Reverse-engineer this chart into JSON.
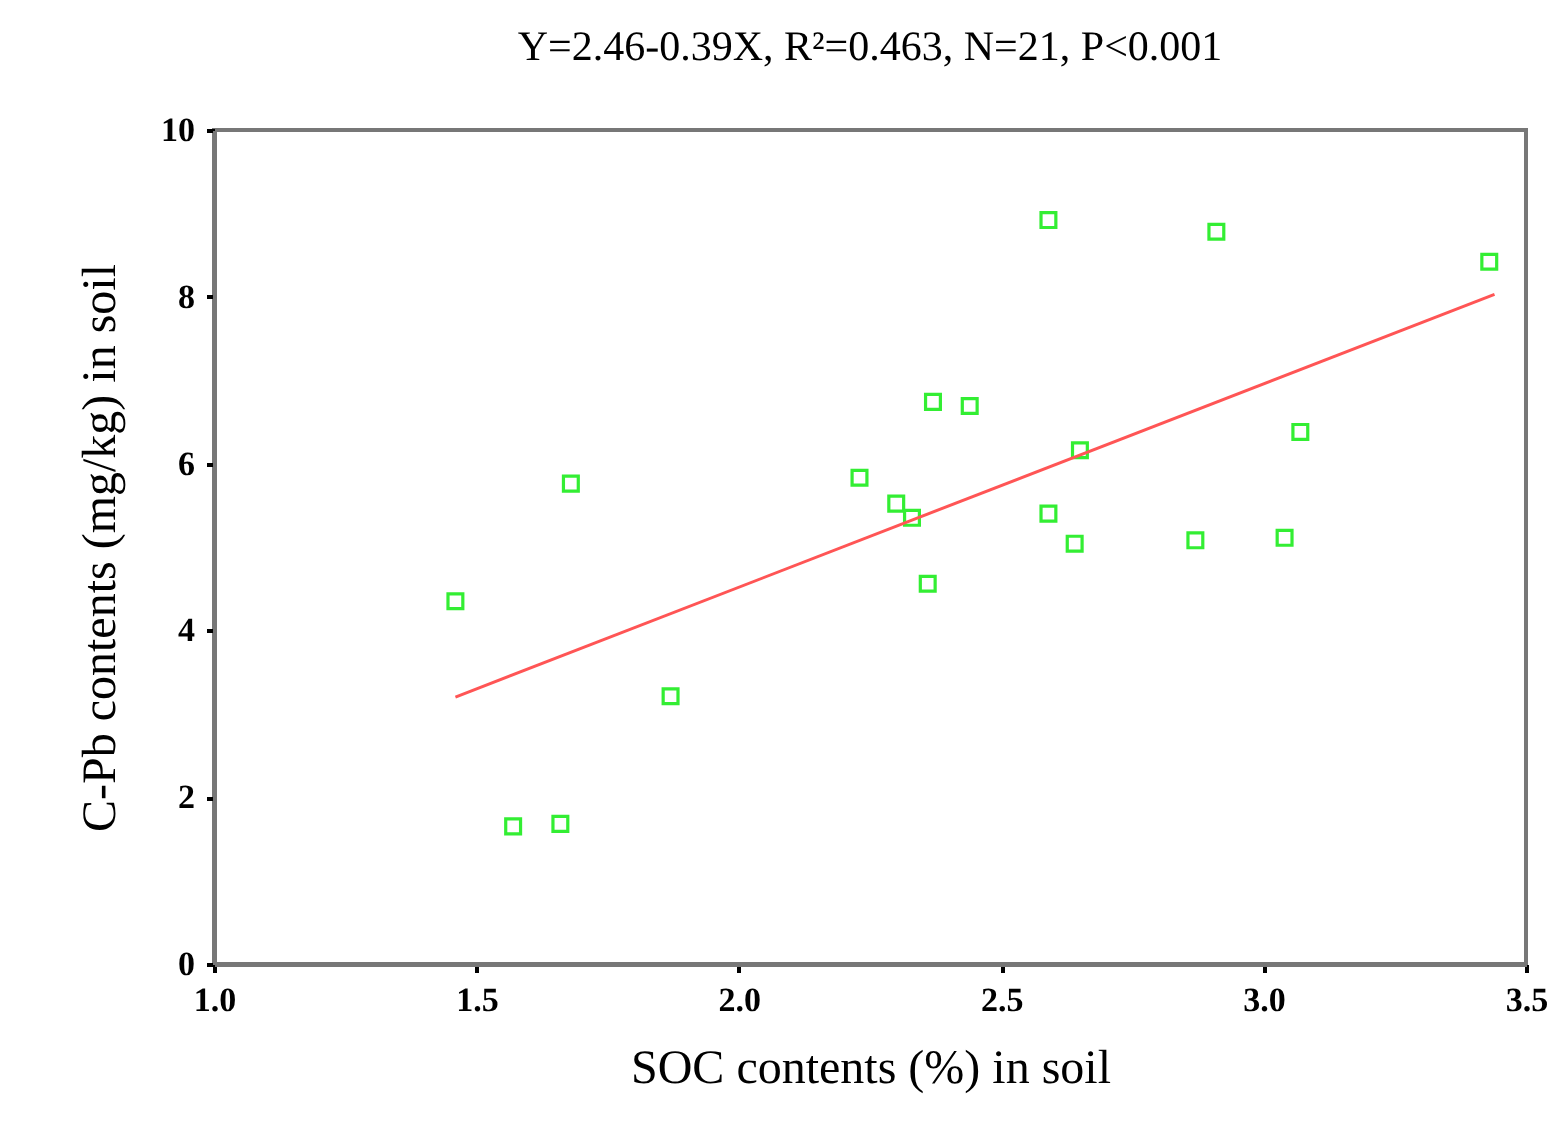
{
  "chart_data": {
    "type": "scatter",
    "title": "Y=2.46-0.39X, R²=0.463, N=21, P<0.001",
    "xlabel": "SOC contents (%) in soil",
    "ylabel": "C-Pb contents (mg/kg) in soil",
    "xlim": [
      1.0,
      3.5
    ],
    "ylim": [
      0,
      10
    ],
    "xticks": [
      {
        "value": 1,
        "label": "1.0"
      },
      {
        "value": 1.5,
        "label": "1.5"
      },
      {
        "value": 2,
        "label": "2.0"
      },
      {
        "value": 2.5,
        "label": "2.5"
      },
      {
        "value": 3,
        "label": "3.0"
      },
      {
        "value": 3.5,
        "label": "3.5"
      }
    ],
    "yticks": [
      0,
      2,
      4,
      6,
      8,
      10
    ],
    "grid": false,
    "marker": "square",
    "series": [
      {
        "type": "scatter",
        "color": "#33ee33",
        "x": [
          1.46,
          1.57,
          1.66,
          1.68,
          1.87,
          2.23,
          2.3,
          2.33,
          2.36,
          2.37,
          2.44,
          2.59,
          2.59,
          2.65,
          2.64,
          2.87,
          2.91,
          3.04,
          3.07,
          3.43
        ],
        "values": [
          4.35,
          1.65,
          1.68,
          5.76,
          3.21,
          5.83,
          5.52,
          5.35,
          4.56,
          6.74,
          6.69,
          8.92,
          5.4,
          6.16,
          5.04,
          5.08,
          8.78,
          5.11,
          6.38,
          8.42
        ]
      },
      {
        "type": "line",
        "color": "#ff5555",
        "line_style": "solid",
        "marker": "none",
        "x": [
          1.46,
          3.44
        ],
        "values": [
          3.2,
          8.03
        ]
      }
    ]
  }
}
